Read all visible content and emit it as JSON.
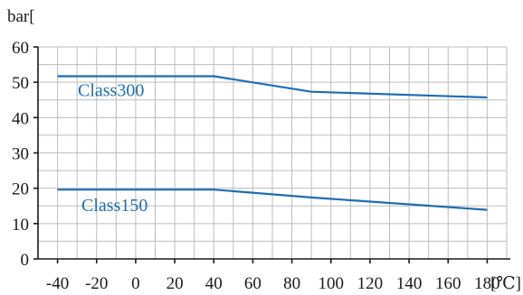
{
  "chart_data": {
    "type": "line",
    "x_unit": "[℃]",
    "y_unit": "bar[",
    "x_ticks": [
      -40,
      -20,
      0,
      20,
      40,
      60,
      80,
      100,
      120,
      140,
      160,
      180
    ],
    "y_ticks": [
      0,
      10,
      20,
      30,
      40,
      50,
      60
    ],
    "xlim": [
      -50,
      190
    ],
    "ylim": [
      0,
      60
    ],
    "grid": true,
    "colors": {
      "series": "#1f6db3",
      "axis": "#1a1a1a",
      "grid": "#bdbdbd"
    },
    "series": [
      {
        "name": "Class300",
        "x": [
          -40,
          40,
          90,
          180
        ],
        "y": [
          51.7,
          51.7,
          47.3,
          45.7
        ]
      },
      {
        "name": "Class150",
        "x": [
          -40,
          40,
          90,
          180
        ],
        "y": [
          19.6,
          19.6,
          17.4,
          13.9
        ]
      }
    ]
  }
}
